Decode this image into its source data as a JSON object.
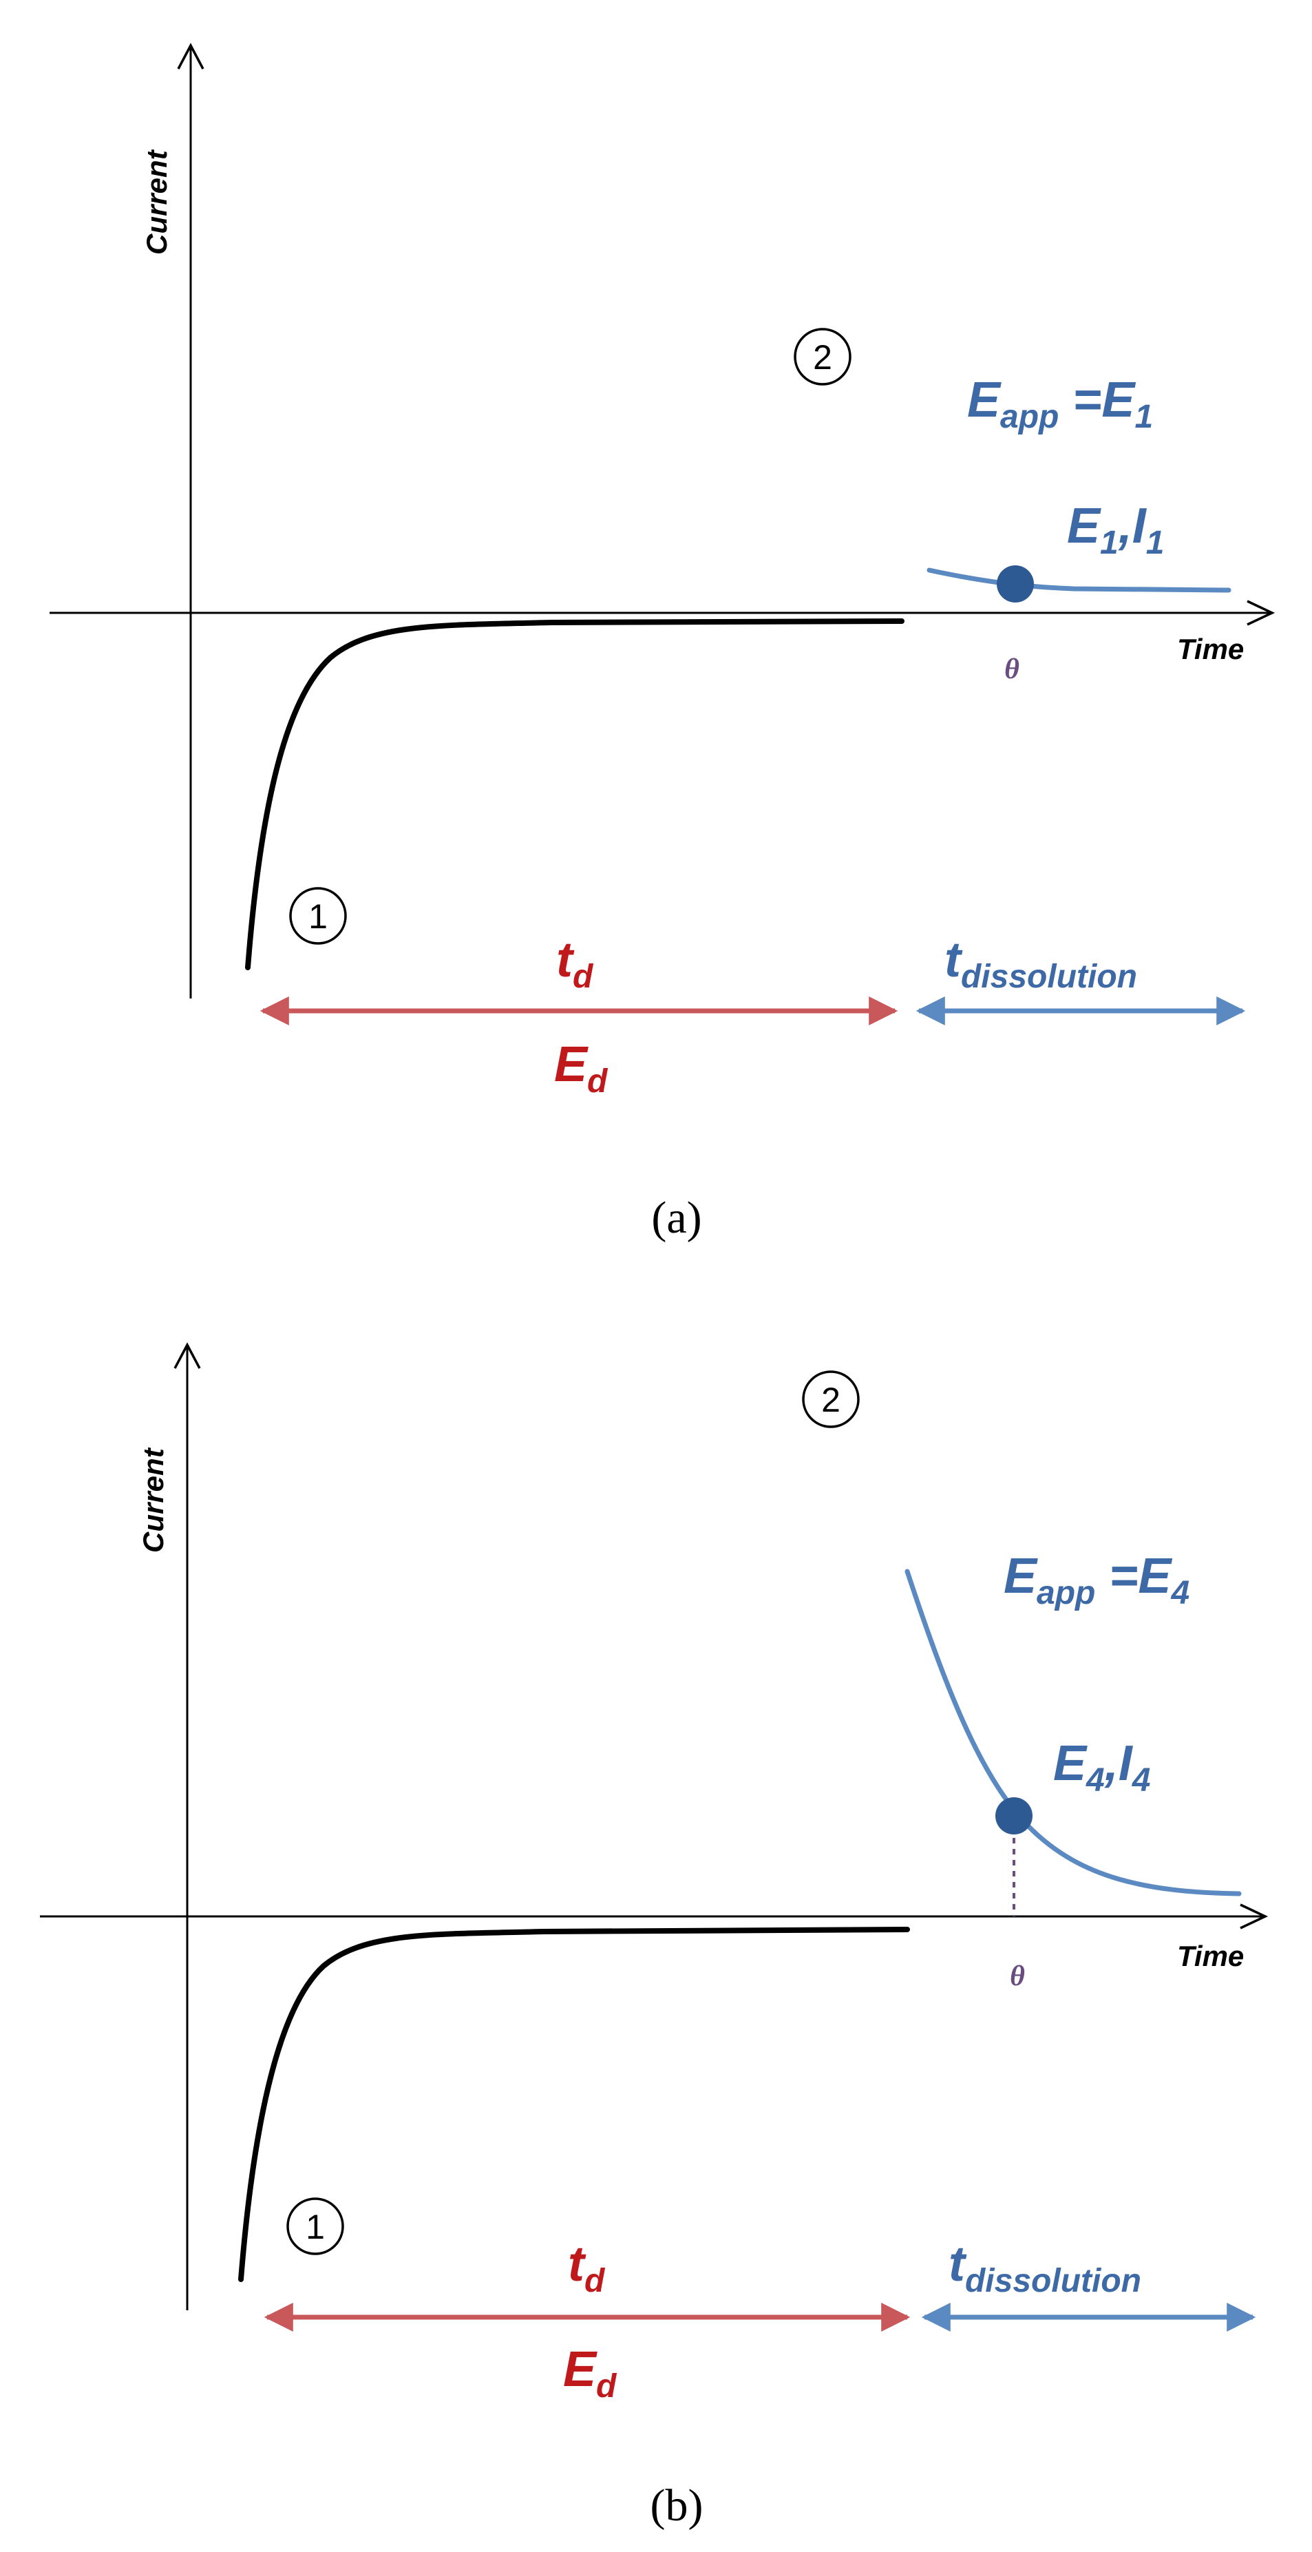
{
  "panels": [
    {
      "id": "a",
      "y_axis_label": "Current",
      "x_axis_label": "Time",
      "step1": "1",
      "step2": "2",
      "td_label": "t",
      "td_sub": "d",
      "ed_label": "E",
      "ed_sub": "d",
      "tdiss_label": "t",
      "tdiss_sub": "dissolution",
      "eapp_label": "E",
      "eapp_sub": "app",
      "eapp_eq": " =E",
      "eapp_val_sub": "1",
      "point_label_e": "E",
      "point_label_e_sub": "1",
      "point_label_sep": ",I",
      "point_label_i_sub": "1",
      "theta": "θ",
      "caption": "(a)"
    },
    {
      "id": "b",
      "y_axis_label": "Current",
      "x_axis_label": "Time",
      "step1": "1",
      "step2": "2",
      "td_label": "t",
      "td_sub": "d",
      "ed_label": "E",
      "ed_sub": "d",
      "tdiss_label": "t",
      "tdiss_sub": "dissolution",
      "eapp_label": "E",
      "eapp_sub": "app",
      "eapp_eq": " =E",
      "eapp_val_sub": "4",
      "point_label_e": "E",
      "point_label_e_sub": "4",
      "point_label_sep": ",I",
      "point_label_i_sub": "4",
      "theta": "θ",
      "caption": "(b)"
    }
  ],
  "colors": {
    "deposition": "#c9585a",
    "dissolution": "#5b8ac2",
    "label_red": "#c0191c",
    "label_blue": "#3d6aa6",
    "theta": "#6a4c80"
  }
}
